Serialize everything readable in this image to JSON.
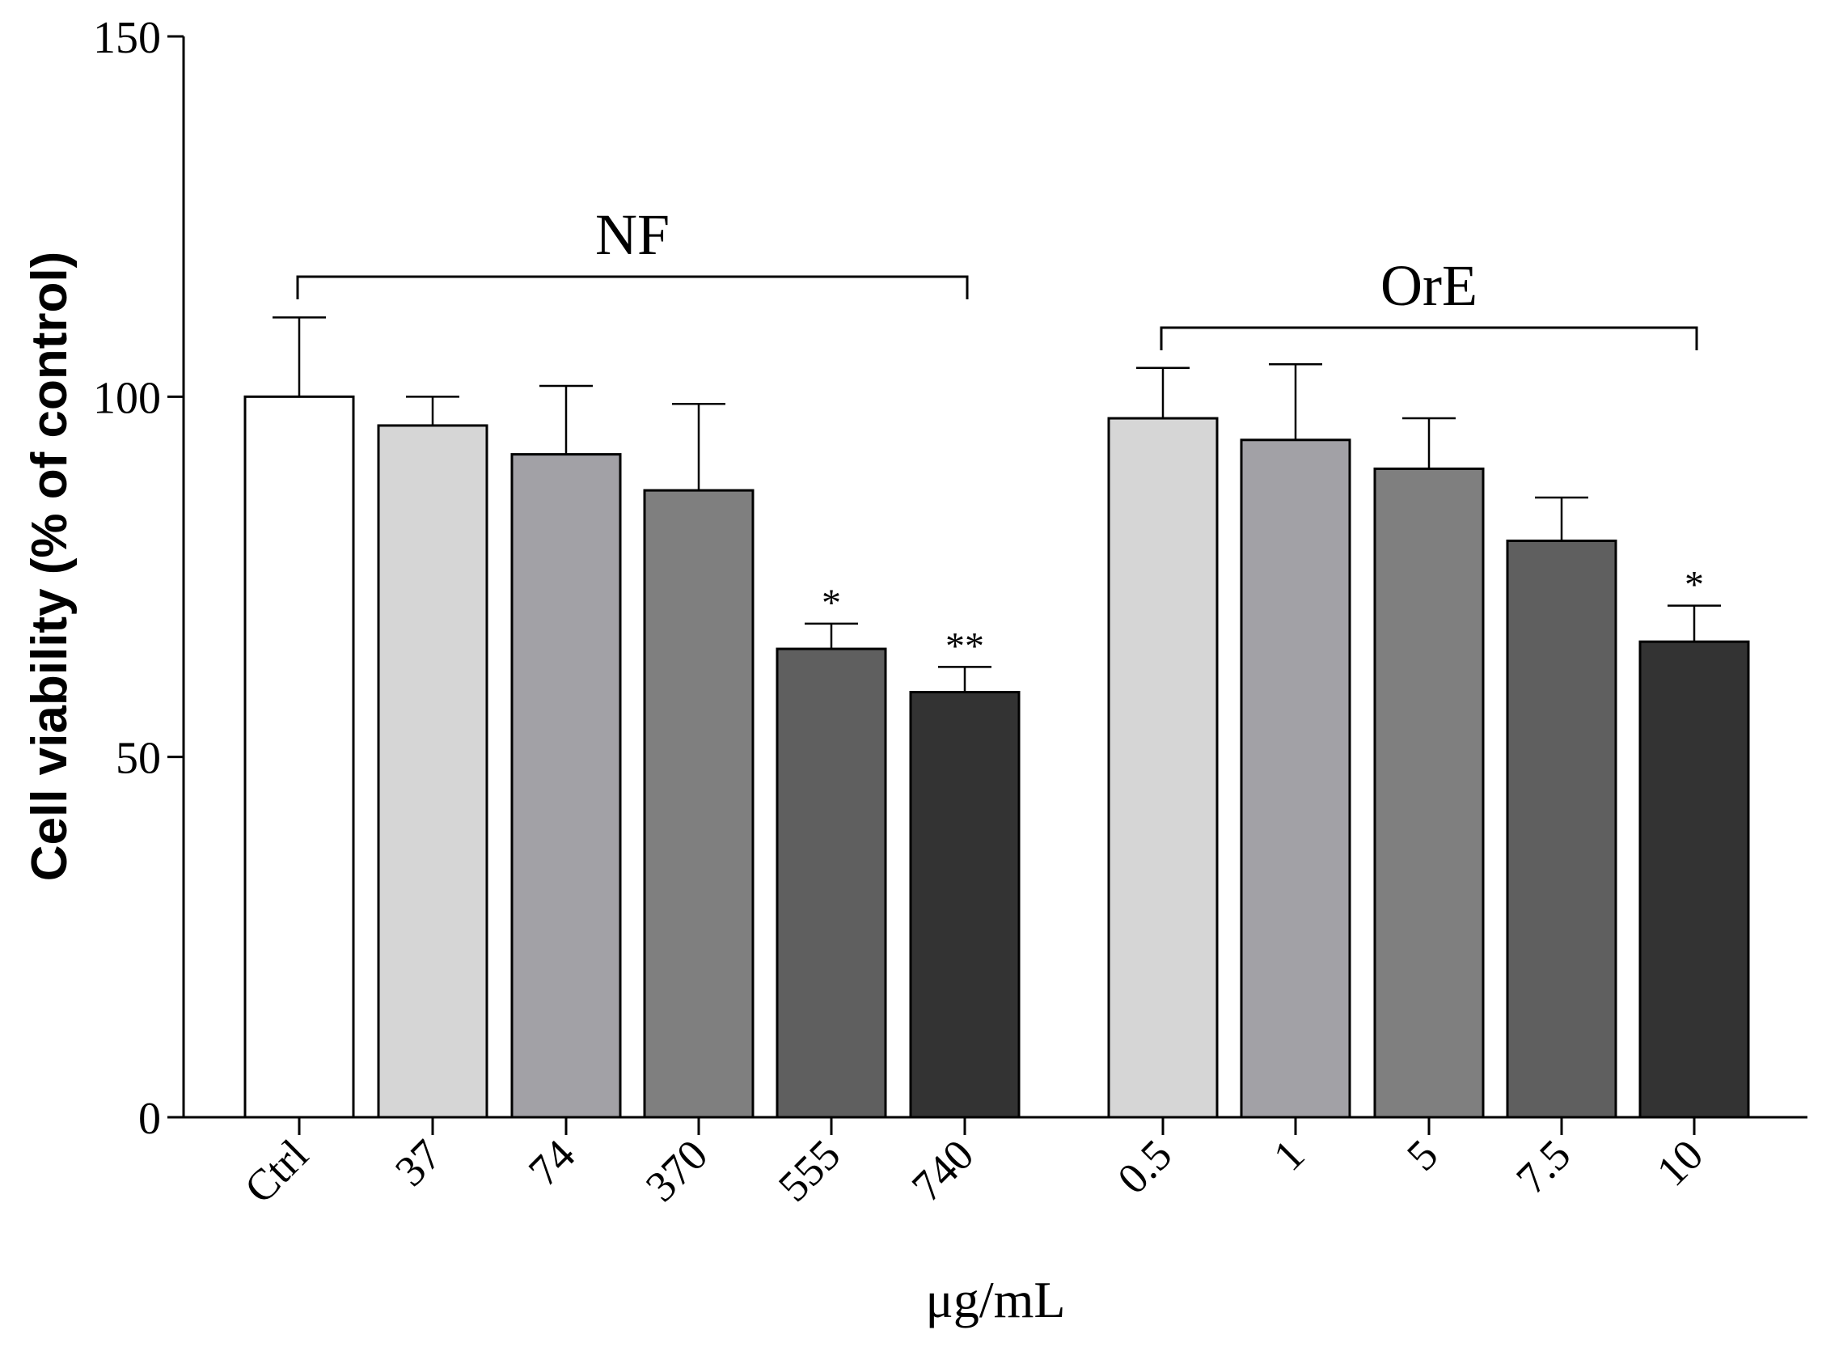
{
  "chart_data": {
    "type": "bar",
    "ylabel": "Cell viability (% of control)",
    "xlabel": "μg/mL",
    "ylim": [
      0,
      150
    ],
    "yticks": [
      0,
      50,
      100,
      150
    ],
    "grid": false,
    "groups": [
      {
        "label": "NF",
        "first": 0,
        "last": 5
      },
      {
        "label": "OrE",
        "first": 6,
        "last": 10
      }
    ],
    "bars": [
      {
        "category": "Ctrl",
        "value": 100,
        "error": 11,
        "sig": "",
        "color": "#ffffff"
      },
      {
        "category": "37",
        "value": 96,
        "error": 4,
        "sig": "",
        "color": "#d6d6d6"
      },
      {
        "category": "74",
        "value": 92,
        "error": 9.5,
        "sig": "",
        "color": "#a2a1a6"
      },
      {
        "category": "370",
        "value": 87,
        "error": 12,
        "sig": "",
        "color": "#7f7f7f"
      },
      {
        "category": "555",
        "value": 65,
        "error": 3.5,
        "sig": "*",
        "color": "#5f5f5f"
      },
      {
        "category": "740",
        "value": 59,
        "error": 3.5,
        "sig": "**",
        "color": "#333333"
      },
      {
        "category": "0.5",
        "value": 97,
        "error": 7,
        "sig": "",
        "color": "#d6d6d6"
      },
      {
        "category": "1",
        "value": 94,
        "error": 10.5,
        "sig": "",
        "color": "#a2a1a6"
      },
      {
        "category": "5",
        "value": 90,
        "error": 7,
        "sig": "",
        "color": "#7f7f7f"
      },
      {
        "category": "7.5",
        "value": 80,
        "error": 6,
        "sig": "",
        "color": "#5f5f5f"
      },
      {
        "category": "10",
        "value": 66,
        "error": 5,
        "sig": "*",
        "color": "#333333"
      }
    ]
  }
}
